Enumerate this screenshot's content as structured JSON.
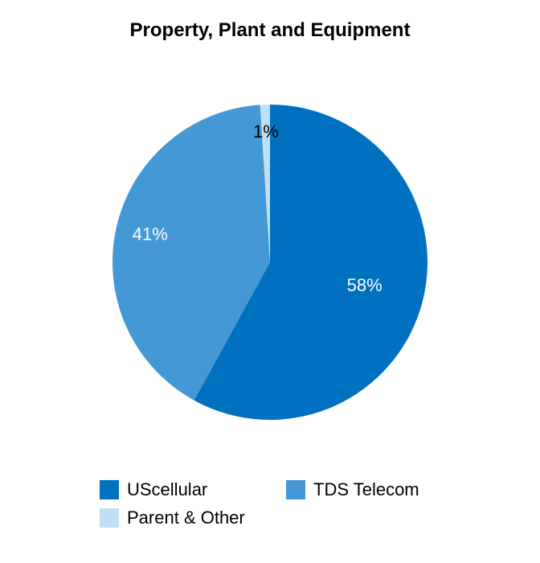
{
  "chart_data": {
    "type": "pie",
    "title": "Property, Plant and Equipment",
    "slices": [
      {
        "label": "UScellular",
        "value": 58,
        "display": "58%",
        "color": "#0070c0",
        "text_color": "#ffffff"
      },
      {
        "label": "TDS Telecom",
        "value": 41,
        "display": "41%",
        "color": "#4498d6",
        "text_color": "#ffffff"
      },
      {
        "label": "Parent & Other",
        "value": 1,
        "display": "1%",
        "color": "#bfe0f2",
        "text_color": "#000000"
      }
    ],
    "legend_position": "bottom"
  }
}
